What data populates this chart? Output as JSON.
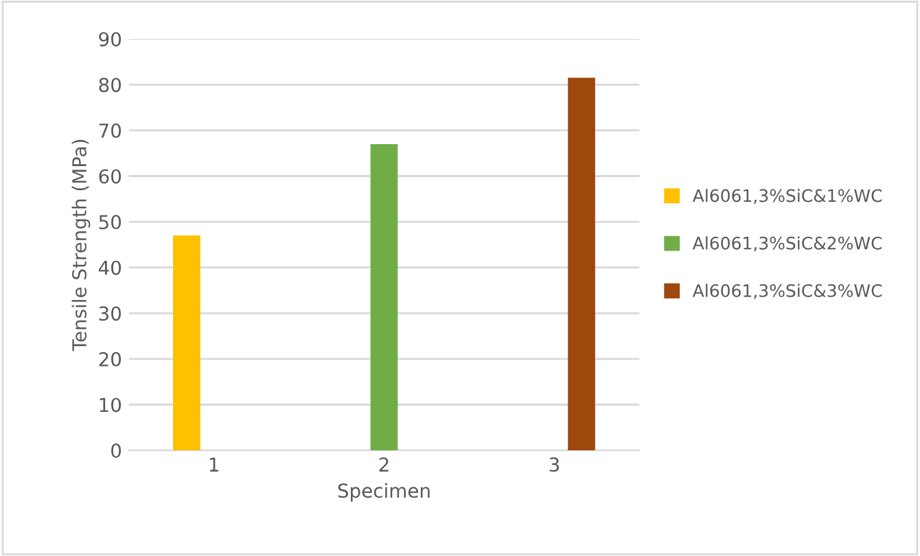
{
  "chart_data": {
    "type": "bar",
    "xlabel": "Specimen",
    "ylabel": "Tensile Strength (MPa)",
    "categories": [
      "1",
      "2",
      "3"
    ],
    "series": [
      {
        "name": "Al6061,3%SiC&1%WC",
        "color": "#ffc000",
        "values": [
          47,
          null,
          null
        ]
      },
      {
        "name": "Al6061,3%SiC&2%WC",
        "color": "#70ad47",
        "values": [
          null,
          67,
          null
        ]
      },
      {
        "name": "Al6061,3%SiC&3%WC",
        "color": "#9e480e",
        "values": [
          null,
          null,
          81.5
        ]
      }
    ],
    "ylim": [
      0,
      90
    ],
    "yticks": [
      0,
      10,
      20,
      30,
      40,
      50,
      60,
      70,
      80,
      90
    ],
    "grid": "y",
    "legend": "right"
  }
}
